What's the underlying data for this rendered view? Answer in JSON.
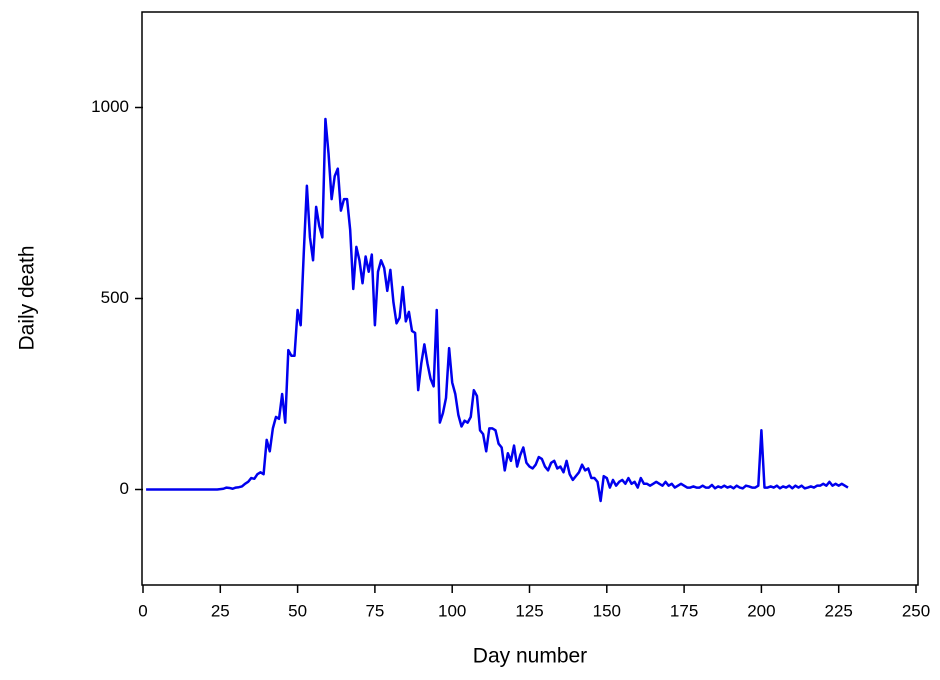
{
  "chart_data": {
    "type": "line",
    "xlabel": "Day number",
    "ylabel": "Daily death",
    "xlim": [
      0,
      250
    ],
    "xticks": [
      0,
      25,
      50,
      75,
      100,
      125,
      150,
      175,
      200,
      225,
      250
    ],
    "ylim": [
      -250,
      1250
    ],
    "yticks": [
      0,
      500,
      1000
    ],
    "x": [
      1,
      2,
      3,
      4,
      5,
      6,
      7,
      8,
      9,
      10,
      11,
      12,
      13,
      14,
      15,
      16,
      17,
      18,
      19,
      20,
      21,
      22,
      23,
      24,
      25,
      26,
      27,
      28,
      29,
      30,
      31,
      32,
      33,
      34,
      35,
      36,
      37,
      38,
      39,
      40,
      41,
      42,
      43,
      44,
      45,
      46,
      47,
      48,
      49,
      50,
      51,
      52,
      53,
      54,
      55,
      56,
      57,
      58,
      59,
      60,
      61,
      62,
      63,
      64,
      65,
      66,
      67,
      68,
      69,
      70,
      71,
      72,
      73,
      74,
      75,
      76,
      77,
      78,
      79,
      80,
      81,
      82,
      83,
      84,
      85,
      86,
      87,
      88,
      89,
      90,
      91,
      92,
      93,
      94,
      95,
      96,
      97,
      98,
      99,
      100,
      101,
      102,
      103,
      104,
      105,
      106,
      107,
      108,
      109,
      110,
      111,
      112,
      113,
      114,
      115,
      116,
      117,
      118,
      119,
      120,
      121,
      122,
      123,
      124,
      125,
      126,
      127,
      128,
      129,
      130,
      131,
      132,
      133,
      134,
      135,
      136,
      137,
      138,
      139,
      140,
      141,
      142,
      143,
      144,
      145,
      146,
      147,
      148,
      149,
      150,
      151,
      152,
      153,
      154,
      155,
      156,
      157,
      158,
      159,
      160,
      161,
      162,
      163,
      164,
      165,
      166,
      167,
      168,
      169,
      170,
      171,
      172,
      173,
      174,
      175,
      176,
      177,
      178,
      179,
      180,
      181,
      182,
      183,
      184,
      185,
      186,
      187,
      188,
      189,
      190,
      191,
      192,
      193,
      194,
      195,
      196,
      197,
      198,
      199,
      200,
      201,
      202,
      203,
      204,
      205,
      206,
      207,
      208,
      209,
      210,
      211,
      212,
      213,
      214,
      215,
      216,
      217,
      218,
      219,
      220,
      221,
      222,
      223,
      224,
      225,
      226,
      227,
      228
    ],
    "series": [
      {
        "name": "Daily death",
        "color": "#0000ee",
        "values": [
          0,
          0,
          0,
          0,
          0,
          0,
          0,
          0,
          0,
          0,
          0,
          0,
          0,
          0,
          0,
          0,
          0,
          0,
          0,
          0,
          0,
          0,
          0,
          0,
          1,
          2,
          5,
          4,
          2,
          5,
          6,
          8,
          15,
          20,
          30,
          28,
          40,
          45,
          40,
          130,
          100,
          160,
          190,
          185,
          250,
          175,
          365,
          350,
          350,
          470,
          430,
          620,
          795,
          660,
          600,
          740,
          690,
          660,
          970,
          880,
          760,
          820,
          840,
          730,
          760,
          760,
          680,
          525,
          635,
          600,
          540,
          610,
          570,
          615,
          430,
          570,
          600,
          580,
          520,
          575,
          490,
          435,
          450,
          530,
          440,
          465,
          415,
          410,
          260,
          330,
          380,
          330,
          290,
          270,
          470,
          175,
          200,
          240,
          370,
          280,
          250,
          195,
          165,
          180,
          175,
          190,
          260,
          245,
          155,
          145,
          100,
          160,
          160,
          155,
          120,
          110,
          50,
          95,
          75,
          115,
          60,
          90,
          110,
          70,
          60,
          55,
          65,
          85,
          80,
          60,
          50,
          70,
          75,
          55,
          60,
          45,
          75,
          40,
          25,
          35,
          45,
          65,
          50,
          55,
          30,
          30,
          20,
          -30,
          35,
          30,
          5,
          25,
          10,
          20,
          25,
          15,
          30,
          15,
          20,
          5,
          30,
          15,
          15,
          10,
          15,
          20,
          15,
          10,
          20,
          10,
          15,
          5,
          10,
          15,
          10,
          5,
          5,
          8,
          5,
          5,
          10,
          5,
          5,
          12,
          3,
          8,
          5,
          10,
          5,
          8,
          3,
          10,
          5,
          3,
          10,
          8,
          5,
          5,
          10,
          155,
          5,
          5,
          8,
          5,
          10,
          3,
          8,
          5,
          10,
          3,
          10,
          5,
          10,
          3,
          5,
          8,
          5,
          10,
          10,
          15,
          10,
          20,
          10,
          15,
          10,
          15,
          10,
          5
        ]
      }
    ]
  }
}
